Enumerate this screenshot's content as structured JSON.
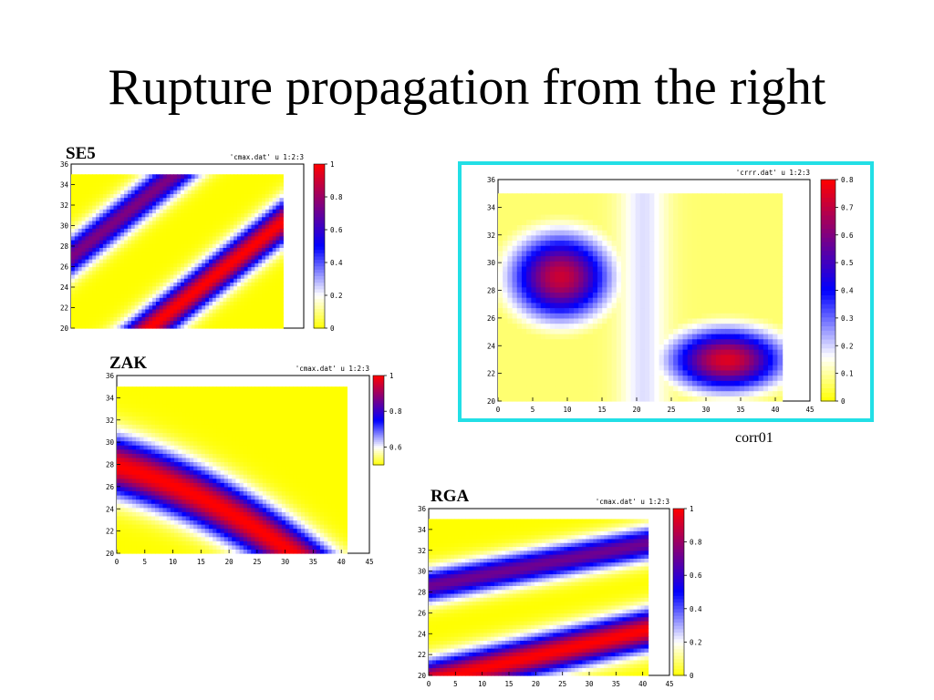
{
  "slide_title": "Rupture propagation from the right",
  "panels": {
    "se5": "SE5",
    "zak": "ZAK",
    "rga": "RGA",
    "corr_caption": "corr01"
  },
  "colors": {
    "low": "#ffff00",
    "mid_low": "#ffffff",
    "mid": "#0000ff",
    "high": "#ff0000",
    "highlight_border": "#22dfe6"
  },
  "chart_data": [
    {
      "id": "se5",
      "type": "heatmap",
      "plot_key": "'cmax.dat' u 1:2:3",
      "xlim": [
        0,
        45
      ],
      "ylim": [
        20,
        36
      ],
      "x_ticks": [],
      "y_ticks": [
        20,
        22,
        24,
        26,
        28,
        30,
        32,
        34,
        36
      ],
      "data_extent": {
        "x": [
          0,
          41
        ],
        "y": [
          20,
          35
        ]
      },
      "colorbar": {
        "range": [
          0,
          1
        ],
        "ticks": [
          0,
          0.2,
          0.4,
          0.6,
          0.8,
          1
        ]
      },
      "bands": [
        {
          "slope": 0.4,
          "intercept": 27.0,
          "peak": 0.75,
          "halfwidth": 2.0
        },
        {
          "slope": 0.4,
          "intercept": 14.0,
          "peak": 1.0,
          "halfwidth": 2.1
        }
      ]
    },
    {
      "id": "zak",
      "type": "heatmap",
      "plot_key": "'cmax.dat' u 1:2:3",
      "xlim": [
        0,
        45
      ],
      "ylim": [
        20,
        36
      ],
      "x_ticks": [
        0,
        5,
        10,
        15,
        20,
        25,
        30,
        35,
        40,
        45
      ],
      "y_ticks": [
        20,
        22,
        24,
        26,
        28,
        30,
        32,
        34,
        36
      ],
      "data_extent": {
        "x": [
          0,
          41
        ],
        "y": [
          20,
          35
        ]
      },
      "colorbar": {
        "range": [
          0.5,
          1
        ],
        "ticks": [
          0.6,
          0.8,
          1
        ]
      },
      "bands": [
        {
          "slope": -0.28,
          "intercept": 29.3,
          "curve": -0.0035,
          "peak": 1.0,
          "halfwidth": 2.6
        }
      ]
    },
    {
      "id": "rga",
      "type": "heatmap",
      "plot_key": "'cmax.dat' u 1:2:3",
      "xlim": [
        0,
        45
      ],
      "ylim": [
        20,
        36
      ],
      "x_ticks": [
        0,
        5,
        10,
        15,
        20,
        25,
        30,
        35,
        40,
        45
      ],
      "y_ticks": [
        20,
        22,
        24,
        26,
        28,
        30,
        32,
        34,
        36
      ],
      "data_extent": {
        "x": [
          0,
          41
        ],
        "y": [
          20,
          35
        ]
      },
      "colorbar": {
        "range": [
          0,
          1
        ],
        "ticks": [
          0,
          0.2,
          0.4,
          0.6,
          0.8,
          1
        ]
      },
      "bands": [
        {
          "slope": 0.1,
          "intercept": 28.6,
          "peak": 0.72,
          "halfwidth": 1.6
        },
        {
          "slope": 0.12,
          "intercept": 19.5,
          "peak": 1.0,
          "halfwidth": 1.9
        }
      ]
    },
    {
      "id": "corr01",
      "type": "heatmap",
      "plot_key": "'crrr.dat' u 1:2:3",
      "xlim": [
        0,
        45
      ],
      "ylim": [
        20,
        36
      ],
      "x_ticks": [
        0,
        5,
        10,
        15,
        20,
        25,
        30,
        35,
        40,
        45
      ],
      "y_ticks": [
        20,
        22,
        24,
        26,
        28,
        30,
        32,
        34,
        36
      ],
      "data_extent": {
        "x": [
          0,
          41
        ],
        "y": [
          20,
          35
        ]
      },
      "colorbar": {
        "range": [
          0,
          0.8
        ],
        "ticks": [
          0,
          0.1,
          0.2,
          0.3,
          0.4,
          0.5,
          0.6,
          0.7,
          0.8
        ]
      },
      "blobs": [
        {
          "cx": 9,
          "cy": 29,
          "sx": 7,
          "sy": 3.0,
          "peak": 0.72
        },
        {
          "cx": 33,
          "cy": 23,
          "sx": 8,
          "sy": 2.2,
          "peak": 0.75
        }
      ],
      "ridge": {
        "x": 21,
        "width": 3.5,
        "value": 0.07
      }
    }
  ]
}
